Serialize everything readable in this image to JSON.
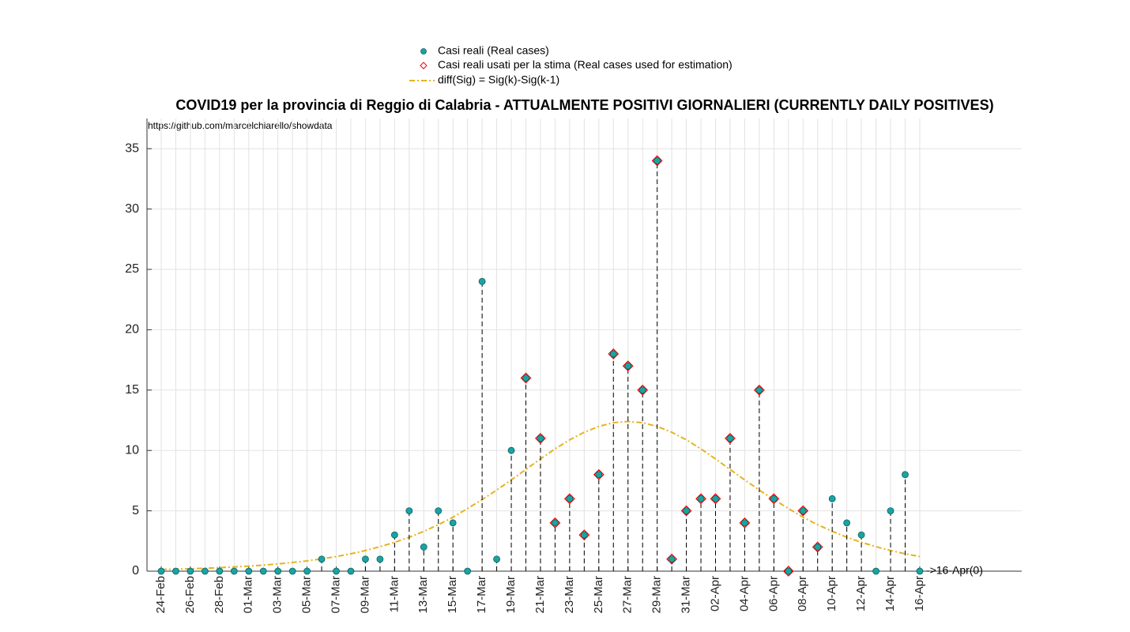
{
  "chart_data": {
    "type": "stem",
    "title": "COVID19 per la provincia di Reggio di Calabria - ATTUALMENTE POSITIVI GIORNALIERI (CURRENTLY DAILY POSITIVES)",
    "source_note": "https://github.com/marcelchiarello/showdata",
    "end_annotation": "->16-Apr(0)",
    "categories": [
      "24-Feb",
      null,
      "26-Feb",
      null,
      "28-Feb",
      null,
      "01-Mar",
      null,
      "03-Mar",
      null,
      "05-Mar",
      null,
      "07-Mar",
      null,
      "09-Mar",
      null,
      "11-Mar",
      null,
      "13-Mar",
      null,
      "15-Mar",
      null,
      "17-Mar",
      null,
      "19-Mar",
      null,
      "21-Mar",
      null,
      "23-Mar",
      null,
      "25-Mar",
      null,
      "27-Mar",
      null,
      "29-Mar",
      null,
      "31-Mar",
      null,
      "02-Apr",
      null,
      "04-Apr",
      null,
      "06-Apr",
      null,
      "08-Apr",
      null,
      "10-Apr",
      null,
      "12-Apr",
      null,
      "14-Apr",
      null,
      "16-Apr"
    ],
    "series": [
      {
        "name": "Casi reali (Real cases)",
        "color": "#1aa3a3",
        "values": [
          0,
          0,
          0,
          0,
          0,
          0,
          0,
          0,
          0,
          0,
          0,
          1,
          0,
          0,
          1,
          1,
          3,
          5,
          2,
          5,
          4,
          0,
          24,
          1,
          10,
          16,
          11,
          4,
          6,
          3,
          8,
          18,
          17,
          15,
          34,
          1,
          5,
          6,
          6,
          11,
          4,
          15,
          6,
          0,
          5,
          2,
          6,
          4,
          3,
          0,
          5,
          8,
          0
        ]
      },
      {
        "name": "Casi reali usati per la stima (Real cases used for estimation)",
        "color": "#ff0000",
        "values": [
          null,
          null,
          null,
          null,
          null,
          null,
          null,
          null,
          null,
          null,
          null,
          null,
          null,
          null,
          null,
          null,
          null,
          null,
          null,
          null,
          null,
          null,
          null,
          null,
          null,
          16,
          11,
          4,
          6,
          3,
          8,
          18,
          17,
          15,
          34,
          1,
          5,
          6,
          6,
          11,
          4,
          15,
          6,
          0,
          5,
          2,
          null,
          null,
          null,
          null,
          null,
          null,
          null
        ]
      },
      {
        "name": "diff(Sig) = Sig(k)-Sig(k-1)",
        "color": "#e6b31e",
        "values": [
          0.14,
          0.17,
          0.2,
          0.24,
          0.29,
          0.35,
          0.42,
          0.5,
          0.6,
          0.72,
          0.85,
          1.02,
          1.21,
          1.44,
          1.71,
          2.03,
          2.39,
          2.81,
          3.3,
          3.85,
          4.47,
          5.19,
          5.93,
          6.72,
          7.56,
          8.43,
          9.3,
          10.13,
          10.88,
          11.51,
          11.99,
          12.3,
          12.4,
          12.3,
          11.99,
          11.51,
          10.88,
          10.13,
          9.3,
          8.43,
          7.56,
          6.72,
          5.93,
          5.19,
          4.47,
          3.85,
          3.3,
          2.81,
          2.39,
          2.03,
          1.71,
          1.44,
          1.21
        ]
      }
    ],
    "ylim": [
      0,
      37.5
    ],
    "yticks": [
      0,
      5,
      10,
      15,
      20,
      25,
      30,
      35
    ],
    "grid": true
  }
}
